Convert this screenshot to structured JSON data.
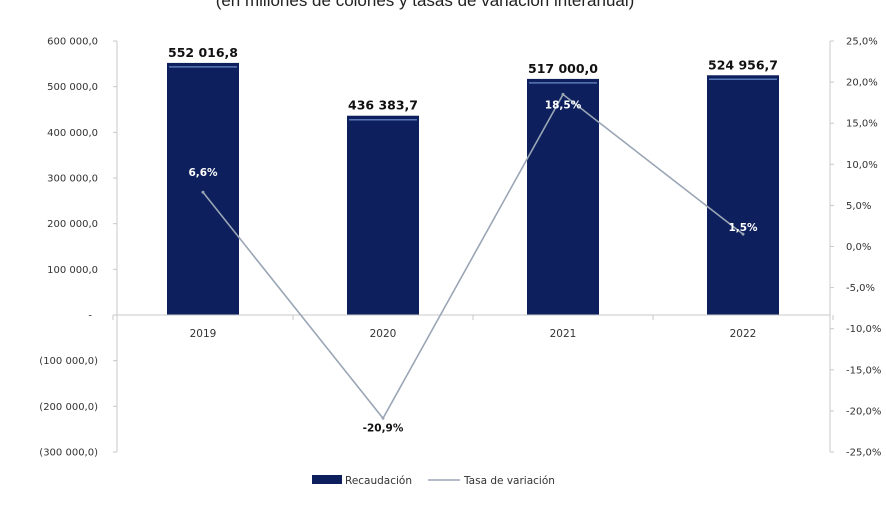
{
  "chart_data": {
    "type": "bar",
    "title": "",
    "subtitle": "(en millones de colones y tasas de variación interanual)",
    "categories": [
      "2019",
      "2020",
      "2021",
      "2022"
    ],
    "series": [
      {
        "name": "Recaudación",
        "type": "bar",
        "axis": "left",
        "color": "#0d1f5c",
        "values": [
          552016.8,
          436383.7,
          517000.0,
          524956.7
        ],
        "labels": [
          "552 016,8",
          "436 383,7",
          "517 000,0",
          "524 956,7"
        ]
      },
      {
        "name": "Tasa de variación",
        "type": "line",
        "axis": "right",
        "color": "#9aa6b6",
        "values": [
          6.6,
          -20.9,
          18.5,
          1.5
        ],
        "labels": [
          "6,6%",
          "-20,9%",
          "18,5%",
          "1,5%"
        ]
      }
    ],
    "y_left": {
      "ylim": [
        -300000,
        600000
      ],
      "tick_labels": [
        "600 000,0",
        "500 000,0",
        "400 000,0",
        "300 000,0",
        "200 000,0",
        "100 000,0",
        "-",
        "(100 000,0)",
        "(200 000,0)",
        "(300 000,0)"
      ]
    },
    "y_right": {
      "ylim": [
        -25,
        25
      ],
      "tick_labels": [
        "25,0%",
        "20,0%",
        "15,0%",
        "10,0%",
        "5,0%",
        "0,0%",
        "-5,0%",
        "-10,0%",
        "-15,0%",
        "-20,0%",
        "-25,0%"
      ]
    },
    "grid": false,
    "legend": "bottom"
  }
}
